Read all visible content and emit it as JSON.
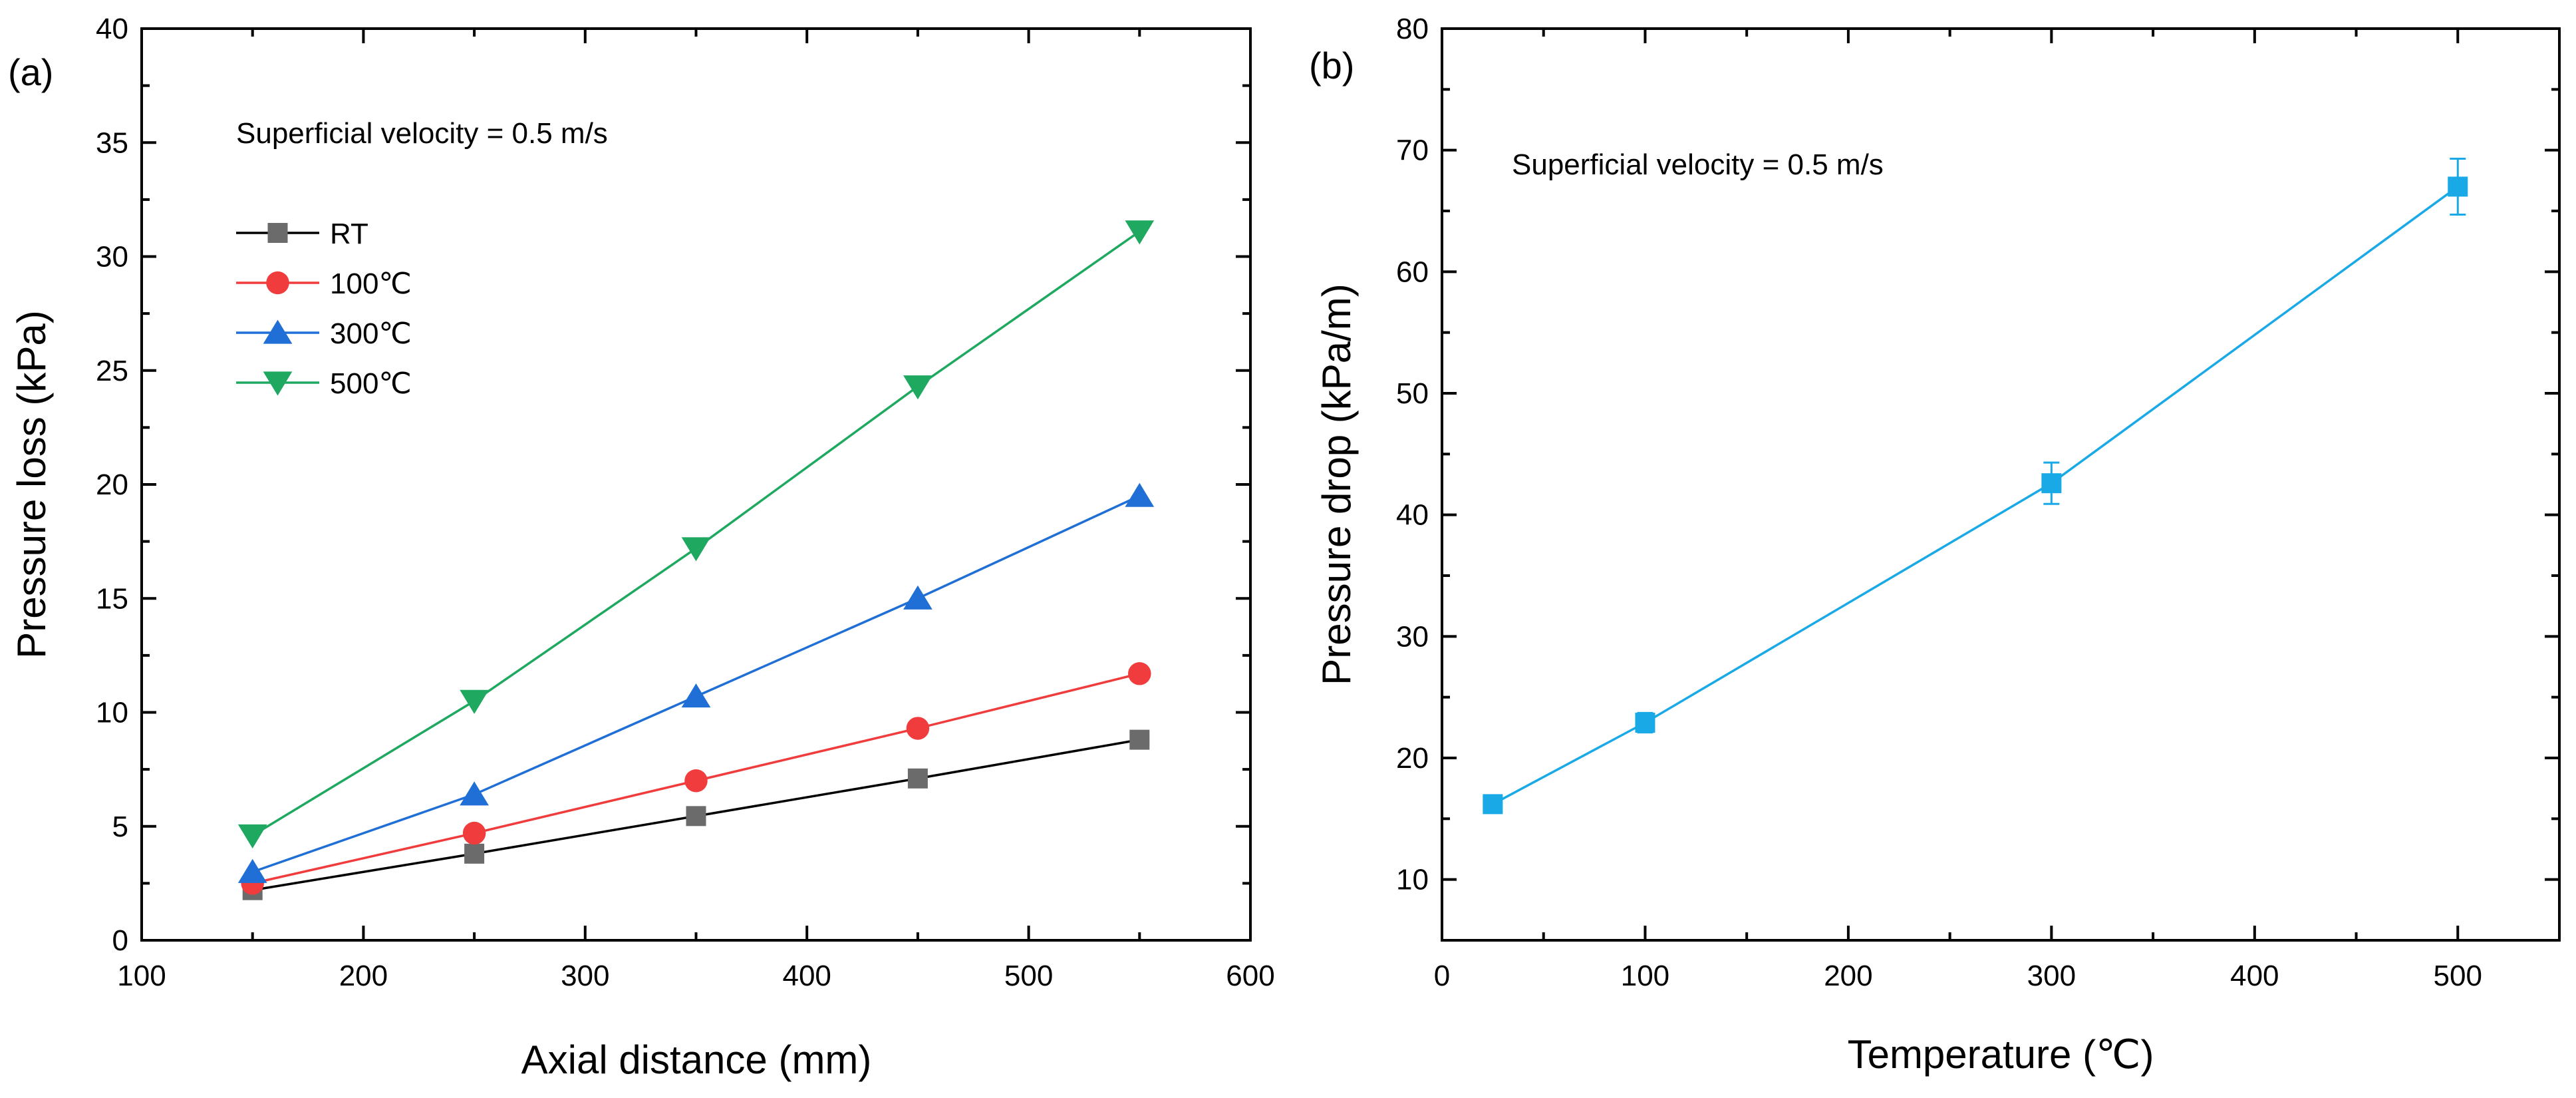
{
  "chart_data": [
    {
      "panel_label": "(a)",
      "type": "line",
      "annotation": "Superficial velocity = 0.5 m/s",
      "xlabel": "Axial distance (mm)",
      "ylabel": "Pressure loss (kPa)",
      "xlim": [
        100,
        600
      ],
      "ylim": [
        0,
        40
      ],
      "xticks": [
        100,
        200,
        300,
        400,
        500,
        600
      ],
      "yticks": [
        0,
        5,
        10,
        15,
        20,
        25,
        30,
        35,
        40
      ],
      "x": [
        150,
        250,
        350,
        450,
        550
      ],
      "legend_position": "upper-left",
      "series": [
        {
          "name": "RT",
          "marker": "square",
          "color": "#6b6b6b",
          "line_color": "#000000",
          "values": [
            2.2,
            3.8,
            5.45,
            7.1,
            8.8
          ]
        },
        {
          "name": "100℃",
          "marker": "circle",
          "color": "#f03c3c",
          "line_color": "#f03c3c",
          "values": [
            2.5,
            4.7,
            7.0,
            9.3,
            11.7
          ]
        },
        {
          "name": "300℃",
          "marker": "triangle-up",
          "color": "#1f6fd6",
          "line_color": "#1f6fd6",
          "values": [
            3.0,
            6.4,
            10.7,
            15.0,
            19.5
          ]
        },
        {
          "name": "500℃",
          "marker": "triangle-down",
          "color": "#1ea860",
          "line_color": "#1ea860",
          "values": [
            4.6,
            10.5,
            17.2,
            24.3,
            31.1
          ]
        }
      ]
    },
    {
      "panel_label": "(b)",
      "type": "line",
      "annotation": "Superficial velocity = 0.5 m/s",
      "xlabel": "Temperature (℃)",
      "ylabel": "Pressure drop (kPa/m)",
      "xlim": [
        0,
        550
      ],
      "ylim": [
        5,
        80
      ],
      "xticks": [
        0,
        100,
        200,
        300,
        400,
        500
      ],
      "yticks": [
        10,
        20,
        30,
        40,
        50,
        60,
        70,
        80
      ],
      "series": [
        {
          "name": "Pressure drop",
          "marker": "square",
          "color": "#18a9e6",
          "x": [
            25,
            100,
            300,
            500
          ],
          "values": [
            16.2,
            22.9,
            42.6,
            67.0
          ],
          "error": [
            0.4,
            0.8,
            1.7,
            2.3
          ]
        }
      ]
    }
  ]
}
